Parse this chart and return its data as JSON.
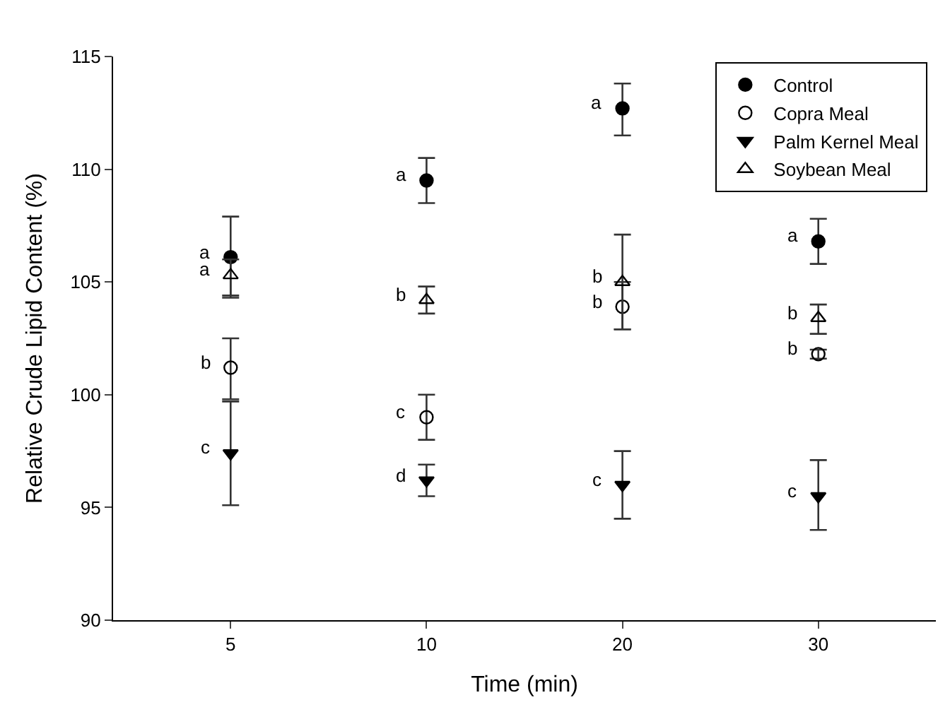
{
  "chart_data": {
    "type": "scatter",
    "xlabel": "Time (min)",
    "ylabel": "Relative Crude Lipid Content (%)",
    "categories": [
      "5",
      "10",
      "20",
      "30"
    ],
    "ylim": [
      90,
      115
    ],
    "yticks": [
      90,
      95,
      100,
      105,
      110,
      115
    ],
    "legend": "top right",
    "series": [
      {
        "name": "Control",
        "color": "#000000",
        "marker": "circle",
        "values": [
          106.1,
          109.5,
          112.7,
          106.8
        ],
        "errors": [
          [
            104.3,
            107.9
          ],
          [
            108.5,
            110.5
          ],
          [
            111.5,
            113.8
          ],
          [
            105.8,
            107.8
          ]
        ]
      },
      {
        "name": "Copra Meal",
        "color": "#000000",
        "marker": "circle-open",
        "values": [
          101.2,
          99.0,
          103.9,
          101.8
        ],
        "errors": [
          [
            99.8,
            102.5
          ],
          [
            98.0,
            100.0
          ],
          [
            102.9,
            105.0
          ],
          [
            101.6,
            102.0
          ]
        ]
      },
      {
        "name": "Palm Kernel Meal",
        "color": "#000000",
        "marker": "triangle-down",
        "values": [
          97.4,
          96.2,
          96.0,
          95.5
        ],
        "errors": [
          [
            95.1,
            99.7
          ],
          [
            95.5,
            96.9
          ],
          [
            94.5,
            97.5
          ],
          [
            94.0,
            97.1
          ]
        ]
      },
      {
        "name": "Soybean Meal",
        "color": "#000000",
        "marker": "triangle-open",
        "values": [
          105.3,
          104.2,
          105.0,
          103.4
        ],
        "errors": [
          [
            104.4,
            106.0
          ],
          [
            103.6,
            104.8
          ],
          [
            102.9,
            107.1
          ],
          [
            102.7,
            104.0
          ]
        ]
      }
    ],
    "annotations": [
      {
        "text": "a",
        "x": "5",
        "y": 106.1
      },
      {
        "text": "a",
        "x": "5",
        "y": 105.3
      },
      {
        "text": "b",
        "x": "5",
        "y": 101.2
      },
      {
        "text": "c",
        "x": "5",
        "y": 97.4
      },
      {
        "text": "a",
        "x": "10",
        "y": 109.5
      },
      {
        "text": "b",
        "x": "10",
        "y": 104.2
      },
      {
        "text": "c",
        "x": "10",
        "y": 99.0
      },
      {
        "text": "d",
        "x": "10",
        "y": 96.2
      },
      {
        "text": "a",
        "x": "20",
        "y": 112.7
      },
      {
        "text": "b",
        "x": "20",
        "y": 105.0
      },
      {
        "text": "b",
        "x": "20",
        "y": 103.9
      },
      {
        "text": "c",
        "x": "20",
        "y": 96.0
      },
      {
        "text": "a",
        "x": "30",
        "y": 106.8
      },
      {
        "text": "b",
        "x": "30",
        "y": 103.4
      },
      {
        "text": "b",
        "x": "30",
        "y": 101.8
      },
      {
        "text": "c",
        "x": "30",
        "y": 95.5
      }
    ]
  }
}
